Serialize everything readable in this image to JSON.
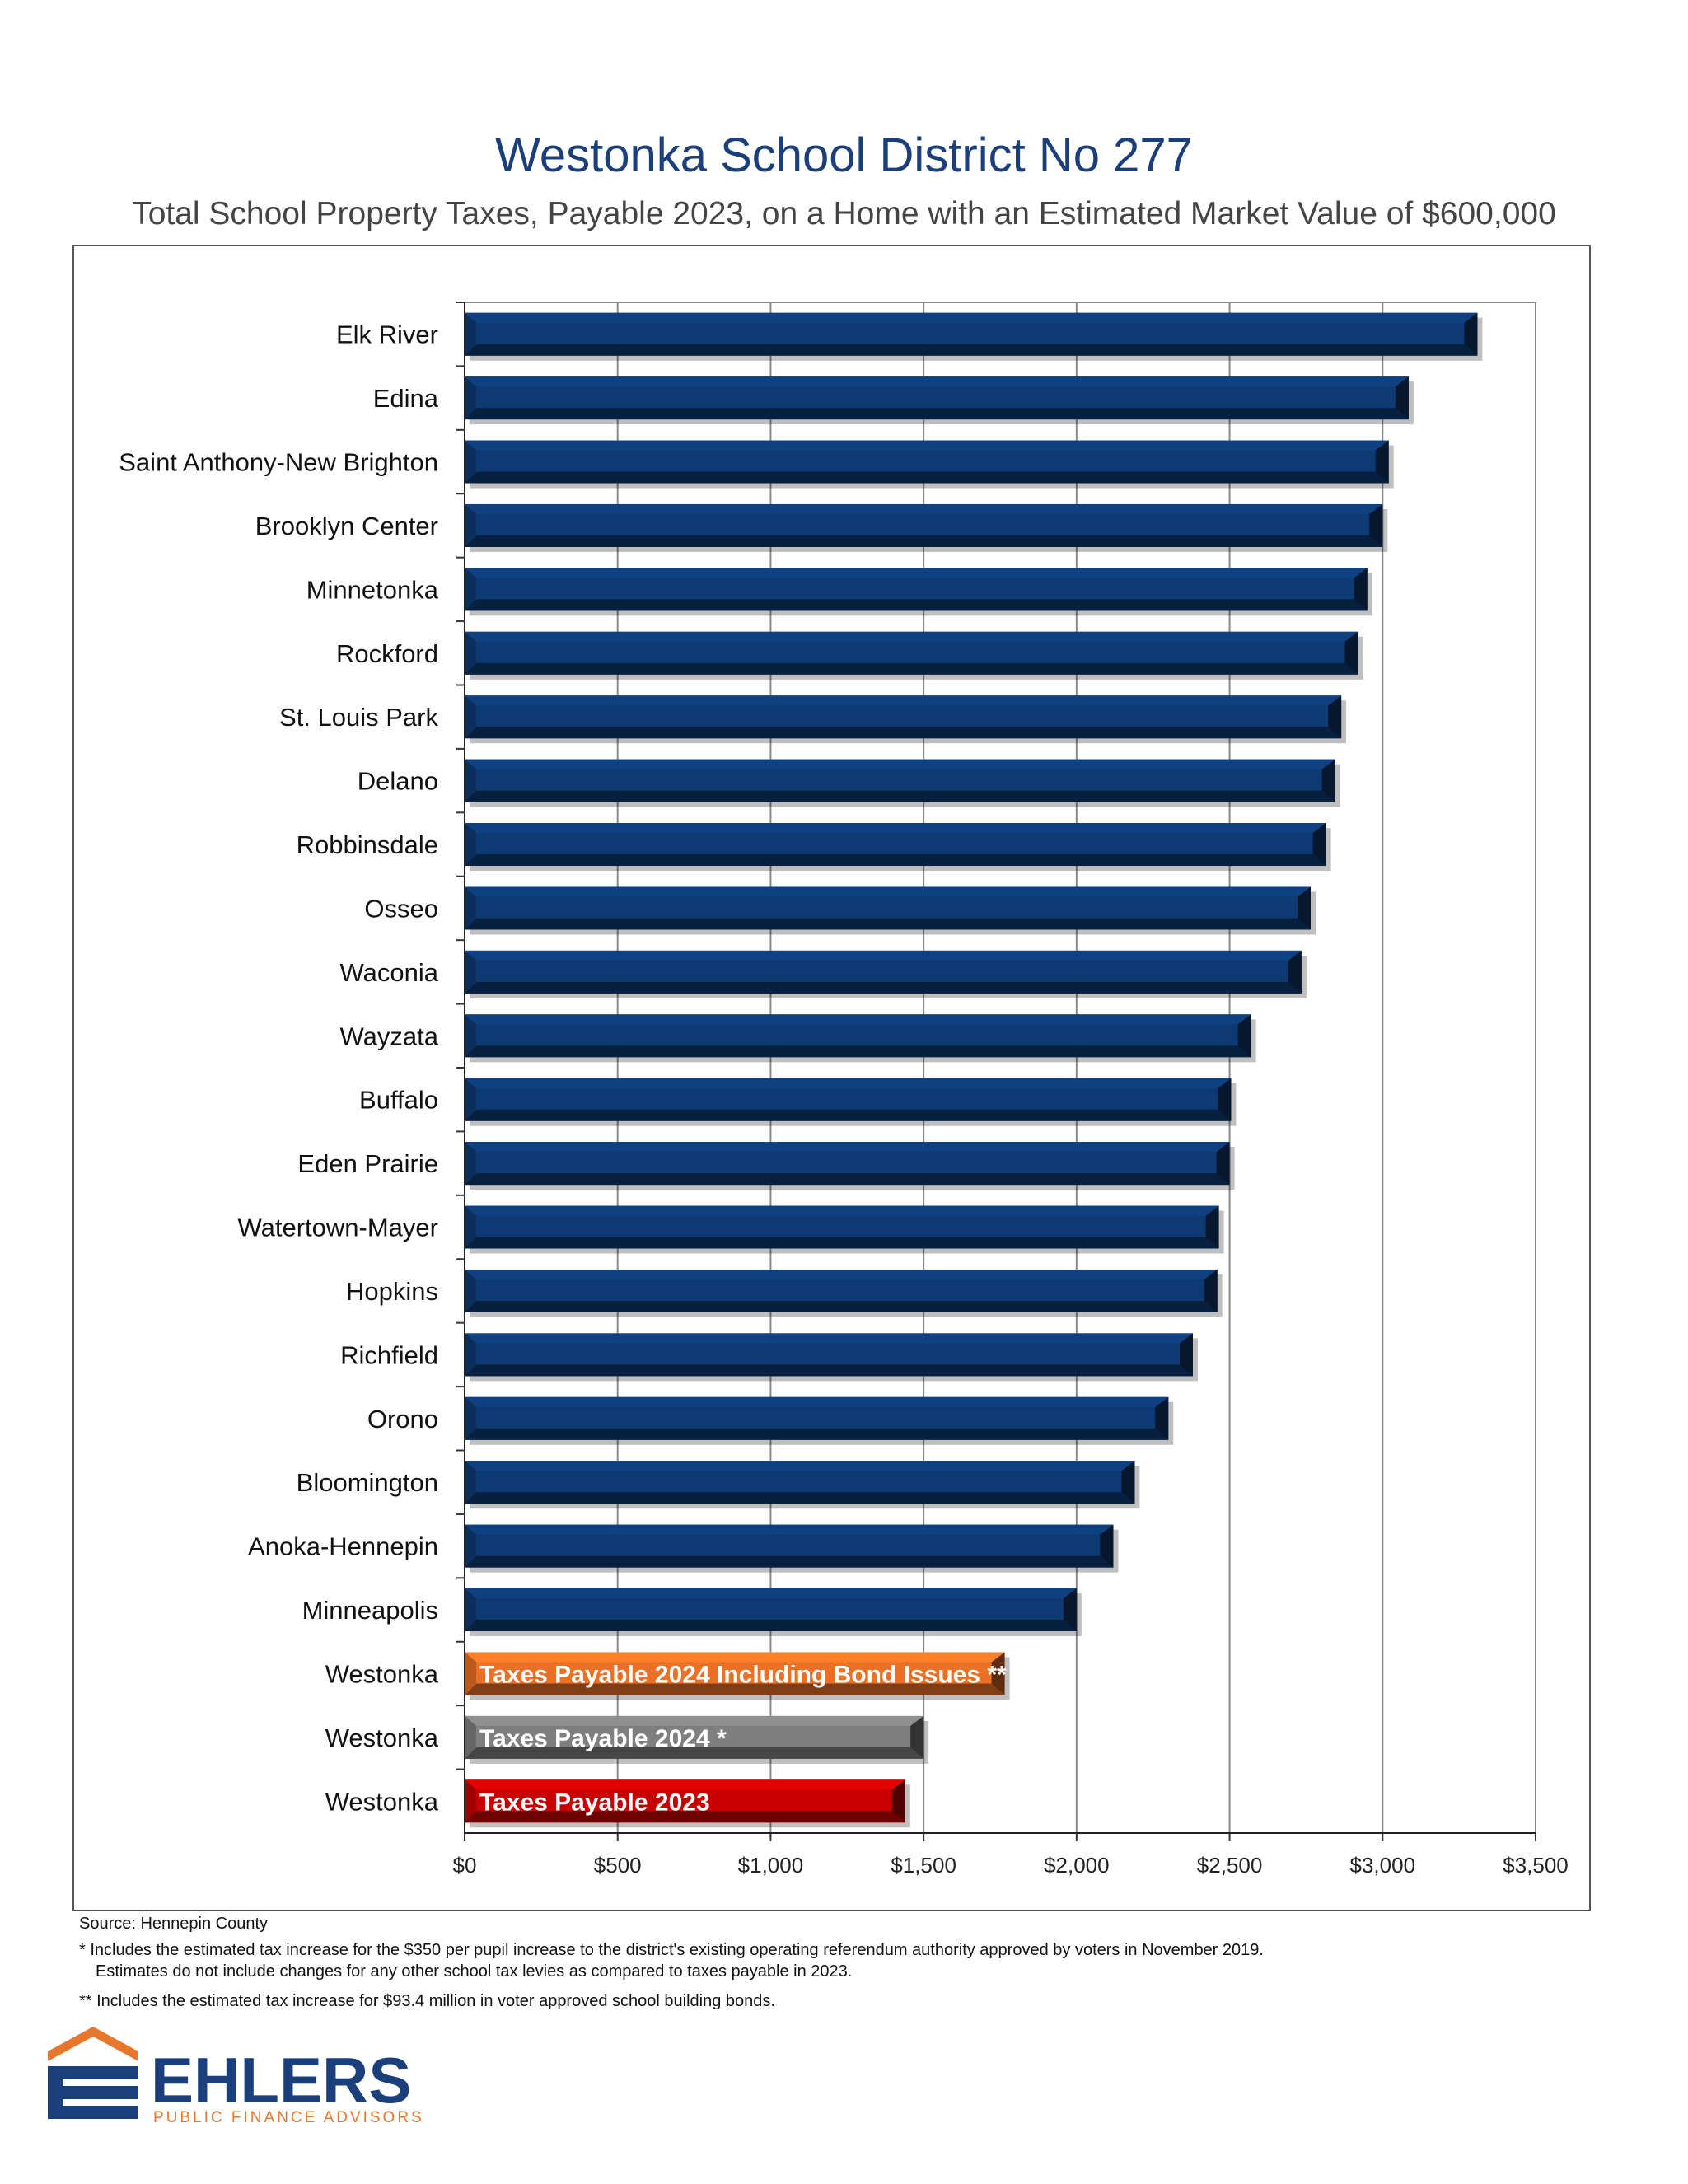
{
  "title": "Westonka School District No 277",
  "subtitle": "Total School Property Taxes, Payable 2023, on a Home with an Estimated Market Value of $600,000",
  "notes": {
    "source": "Source: Hennepin County",
    "note1_line1": "* Includes the estimated tax increase for the $350 per pupil increase to the district's existing operating referendum authority approved by voters in November 2019.",
    "note1_line2": "Estimates do not include changes for any other school tax levies as compared to taxes payable in 2023.",
    "note2": "** Includes the estimated tax increase for $93.4 million in voter approved school building bonds."
  },
  "logo": {
    "name": "EHLERS",
    "tagline": "PUBLIC FINANCE ADVISORS",
    "colors": {
      "navy": "#1b3f7a",
      "orange": "#e8772e"
    }
  },
  "colors": {
    "default_bar": "#0e3a73",
    "bond_bar": "#ea7025",
    "payable2024_bar": "#7f7f7f",
    "payable2023_bar": "#c80000"
  },
  "chart_data": {
    "type": "bar",
    "orientation": "horizontal",
    "xlim": [
      0,
      3500
    ],
    "x_ticks": [
      "$0",
      "$500",
      "$1,000",
      "$1,500",
      "$2,000",
      "$2,500",
      "$3,000",
      "$3,500"
    ],
    "grid": "vertical",
    "categories": [
      "Elk River",
      "Edina",
      "Saint Anthony-New Brighton",
      "Brooklyn Center",
      "Minnetonka",
      "Rockford",
      "St. Louis Park",
      "Delano",
      "Robbinsdale",
      "Osseo",
      "Waconia",
      "Wayzata",
      "Buffalo",
      "Eden Prairie",
      "Watertown-Mayer",
      "Hopkins",
      "Richfield",
      "Orono",
      "Bloomington",
      "Anoka-Hennepin",
      "Minneapolis",
      "Westonka",
      "Westonka",
      "Westonka"
    ],
    "values": [
      3310,
      3085,
      3020,
      3000,
      2950,
      2920,
      2865,
      2845,
      2815,
      2765,
      2735,
      2570,
      2505,
      2500,
      2465,
      2460,
      2380,
      2300,
      2190,
      2120,
      2000,
      1765,
      1500,
      1440
    ],
    "bar_labels": [
      "",
      "",
      "",
      "",
      "",
      "",
      "",
      "",
      "",
      "",
      "",
      "",
      "",
      "",
      "",
      "",
      "",
      "",
      "",
      "",
      "",
      "Taxes Payable 2024 Including Bond Issues **",
      "Taxes Payable 2024 *",
      "Taxes Payable 2023"
    ],
    "bar_styles": [
      "default",
      "default",
      "default",
      "default",
      "default",
      "default",
      "default",
      "default",
      "default",
      "default",
      "default",
      "default",
      "default",
      "default",
      "default",
      "default",
      "default",
      "default",
      "default",
      "default",
      "default",
      "bond",
      "payable2024",
      "payable2023"
    ]
  }
}
